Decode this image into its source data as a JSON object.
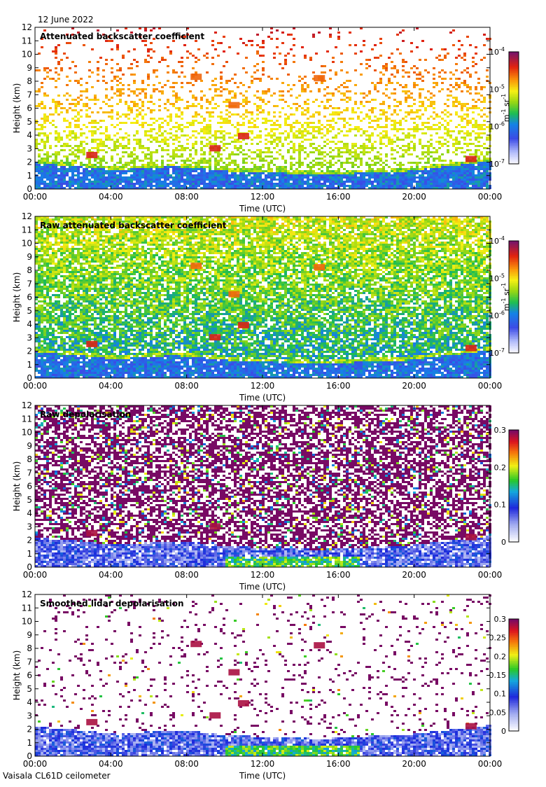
{
  "date": "12 June 2022",
  "instrument": "Vaisala CL61D ceilometer",
  "chart_data": [
    {
      "type": "heatmap",
      "title": "Attenuated backscatter coefficient",
      "xlabel": "Time (UTC)",
      "ylabel": "Height (km)",
      "xticks": [
        "00:00",
        "04:00",
        "08:00",
        "12:00",
        "16:00",
        "20:00",
        "00:00"
      ],
      "yticks": [
        "0",
        "1",
        "2",
        "3",
        "4",
        "5",
        "6",
        "7",
        "8",
        "9",
        "10",
        "11",
        "12"
      ],
      "xlim_hours": [
        0,
        24
      ],
      "ylim_km": [
        0,
        12
      ],
      "colorbar": {
        "scale": "log",
        "range": [
          1e-07,
          0.0001
        ],
        "ticks": [
          {
            "base": "10",
            "exp": "-4"
          },
          {
            "base": "10",
            "exp": "-5"
          },
          {
            "base": "10",
            "exp": "-6"
          },
          {
            "base": "10",
            "exp": "-7"
          }
        ],
        "unit": {
          "base1": "m",
          "exp1": "-1",
          "base2": "sr",
          "exp2": "-1"
        }
      },
      "features": {
        "boundary_layer_top_km": [
          2.3,
          2.1,
          2.0,
          1.8,
          1.8,
          1.9,
          2.0,
          1.9,
          1.7,
          1.6,
          1.5,
          1.5,
          1.4,
          1.4,
          1.5,
          1.6,
          1.6,
          1.8,
          2.0,
          2.2,
          2.4
        ],
        "cloud_patches": [
          {
            "t_hours": 3.0,
            "h_km": 2.5
          },
          {
            "t_hours": 8.5,
            "h_km": 8.3
          },
          {
            "t_hours": 9.5,
            "h_km": 3.0
          },
          {
            "t_hours": 10.5,
            "h_km": 6.2
          },
          {
            "t_hours": 11.0,
            "h_km": 3.9
          },
          {
            "t_hours": 15.0,
            "h_km": 8.2
          },
          {
            "t_hours": 23.0,
            "h_km": 2.2
          }
        ]
      },
      "palette": "backscatter",
      "noise_mode": "upper_sparse"
    },
    {
      "type": "heatmap",
      "title": "Raw attenuated backscatter coefficient",
      "xlabel": "Time (UTC)",
      "ylabel": "Height (km)",
      "xticks": [
        "00:00",
        "04:00",
        "08:00",
        "12:00",
        "16:00",
        "20:00",
        "00:00"
      ],
      "yticks": [
        "0",
        "1",
        "2",
        "3",
        "4",
        "5",
        "6",
        "7",
        "8",
        "9",
        "10",
        "11",
        "12"
      ],
      "xlim_hours": [
        0,
        24
      ],
      "ylim_km": [
        0,
        12
      ],
      "colorbar": {
        "scale": "log",
        "range": [
          1e-07,
          0.0001
        ],
        "ticks": [
          {
            "base": "10",
            "exp": "-4"
          },
          {
            "base": "10",
            "exp": "-5"
          },
          {
            "base": "10",
            "exp": "-6"
          },
          {
            "base": "10",
            "exp": "-7"
          }
        ],
        "unit": {
          "base1": "m",
          "exp1": "-1",
          "base2": "sr",
          "exp2": "-1"
        }
      },
      "palette": "backscatter",
      "noise_mode": "dense_noise"
    },
    {
      "type": "heatmap",
      "title": "Raw depolarisation",
      "xlabel": "Time (UTC)",
      "ylabel": "Height (km)",
      "xticks": [
        "00:00",
        "04:00",
        "08:00",
        "12:00",
        "16:00",
        "20:00",
        "00:00"
      ],
      "yticks": [
        "0",
        "1",
        "2",
        "3",
        "4",
        "5",
        "6",
        "7",
        "8",
        "9",
        "10",
        "11",
        "12"
      ],
      "xlim_hours": [
        0,
        24
      ],
      "ylim_km": [
        0,
        12
      ],
      "colorbar": {
        "scale": "linear",
        "range": [
          0,
          0.3
        ],
        "ticks": [
          "0.3",
          "0.2",
          "0.1",
          "0"
        ]
      },
      "palette": "depolarisation",
      "noise_mode": "purple_noise"
    },
    {
      "type": "heatmap",
      "title": "Smoothed lidar depolarisation",
      "xlabel": "Time (UTC)",
      "ylabel": "Height (km)",
      "xticks": [
        "00:00",
        "04:00",
        "08:00",
        "12:00",
        "16:00",
        "20:00",
        "00:00"
      ],
      "yticks": [
        "0",
        "1",
        "2",
        "3",
        "4",
        "5",
        "6",
        "7",
        "8",
        "9",
        "10",
        "11",
        "12"
      ],
      "xlim_hours": [
        0,
        24
      ],
      "ylim_km": [
        0,
        12
      ],
      "colorbar": {
        "scale": "linear",
        "range": [
          0,
          0.3
        ],
        "ticks": [
          "0.3",
          "0.25",
          "0.2",
          "0.15",
          "0.1",
          "0.05",
          "0"
        ]
      },
      "palette": "depolarisation",
      "noise_mode": "sparse_purple"
    }
  ]
}
